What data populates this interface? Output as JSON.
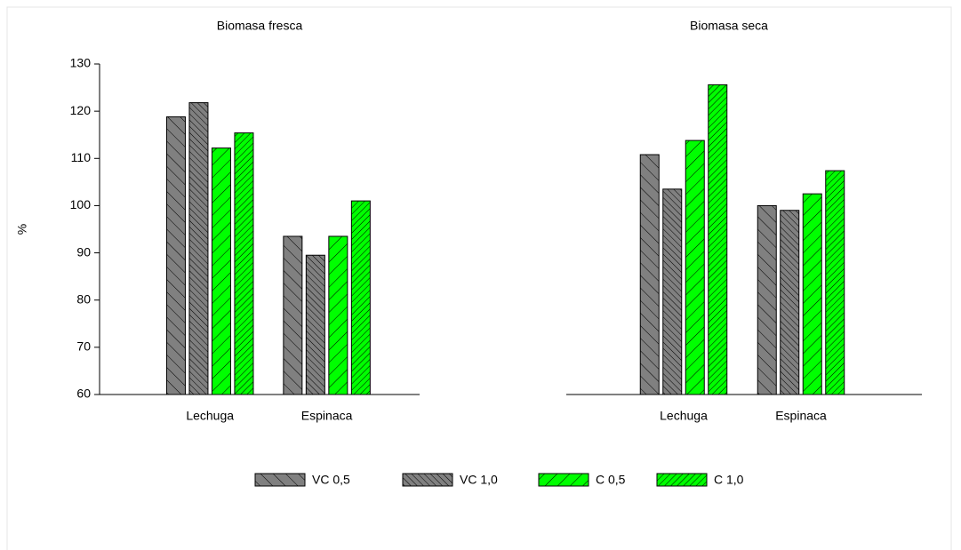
{
  "chart_data": [
    {
      "type": "bar",
      "title": "Biomasa fresca",
      "y_label": "%",
      "categories": [
        "Lechuga",
        "Espinaca"
      ],
      "series": [
        {
          "name": "VC 0,5",
          "color": "#808080",
          "values": [
            118.8,
            93.5
          ]
        },
        {
          "name": "VC 1,0",
          "color": "#808080",
          "values": [
            121.8,
            89.5
          ]
        },
        {
          "name": "C 0,5",
          "color": "#00ff00",
          "values": [
            112.2,
            93.5
          ]
        },
        {
          "name": "C 1,0",
          "color": "#00ff00",
          "values": [
            115.4,
            101
          ]
        }
      ],
      "ylim": [
        60,
        130
      ],
      "yticks": [
        60,
        70,
        80,
        90,
        100,
        110,
        120,
        130
      ]
    },
    {
      "type": "bar",
      "title": "Biomasa seca",
      "categories": [
        "Lechuga",
        "Espinaca"
      ],
      "series": [
        {
          "color": "#808080",
          "values": [
            110.8,
            100
          ]
        },
        {
          "color": "#808080",
          "values": [
            103.5,
            99
          ]
        },
        {
          "color": "#00ff00",
          "values": [
            113.8,
            102.5
          ]
        },
        {
          "color": "#00ff00",
          "values": [
            125.6,
            107.4
          ]
        }
      ],
      "ylim": [
        60,
        130
      ]
    }
  ]
}
